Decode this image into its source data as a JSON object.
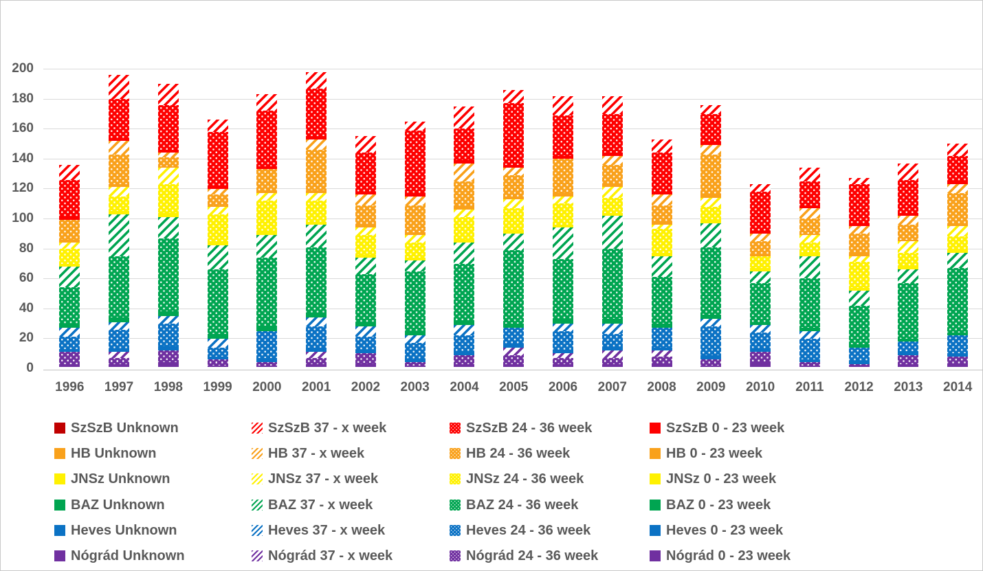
{
  "colors": {
    "szszb_unknown": "#C00000",
    "szszb": "#FE0000",
    "hb": "#F9A11B",
    "jnsz": "#FFF101",
    "baz": "#00A551",
    "heves": "#0B72C4",
    "nograd": "#7030A0",
    "text": "#595959",
    "gridline": "#D9D9D9",
    "axis": "#BFBFBF",
    "background": "#FFFFFF"
  },
  "chart_data": {
    "type": "bar",
    "stacked": true,
    "title": "",
    "xlabel": "",
    "ylabel": "",
    "grid": true,
    "legend_position": "bottom",
    "ylim": [
      0,
      200
    ],
    "ytick_step": 20,
    "yticks": [
      "0",
      "20",
      "40",
      "60",
      "80",
      "100",
      "120",
      "140",
      "160",
      "180",
      "200"
    ],
    "categories": [
      "1996",
      "1997",
      "1998",
      "1999",
      "2000",
      "2001",
      "2002",
      "2003",
      "2004",
      "2005",
      "2006",
      "2007",
      "2008",
      "2009",
      "2010",
      "2011",
      "2012",
      "2013",
      "2014"
    ],
    "series": [
      {
        "name": "Nógrád 0 - 23 week",
        "color_key": "nograd",
        "pattern": "solid",
        "values": [
          2,
          2,
          3,
          1,
          1,
          2,
          2,
          1,
          2,
          2,
          2,
          2,
          2,
          1,
          3,
          1,
          1,
          2,
          2
        ]
      },
      {
        "name": "Nógrád 24 - 36 week",
        "color_key": "nograd",
        "pattern": "dots",
        "values": [
          8,
          4,
          8,
          4,
          2,
          4,
          7,
          2,
          6,
          6,
          4,
          4,
          5,
          4,
          7,
          2,
          1,
          6,
          5
        ]
      },
      {
        "name": "Nógrád 37 - x week",
        "color_key": "nograd",
        "pattern": "diag",
        "values": [
          0,
          4,
          0,
          0,
          0,
          4,
          0,
          0,
          0,
          5,
          3,
          5,
          4,
          0,
          0,
          0,
          0,
          0,
          0
        ]
      },
      {
        "name": "Nógrád Unknown",
        "color_key": "nograd",
        "pattern": "solid",
        "values": [
          0,
          0,
          0,
          0,
          0,
          0,
          0,
          0,
          0,
          0,
          0,
          0,
          0,
          0,
          0,
          0,
          0,
          0,
          0
        ]
      },
      {
        "name": "Heves 0 - 23 week",
        "color_key": "heves",
        "pattern": "solid",
        "values": [
          2,
          2,
          3,
          2,
          3,
          3,
          2,
          2,
          2,
          2,
          2,
          2,
          2,
          3,
          2,
          2,
          2,
          2,
          2
        ]
      },
      {
        "name": "Heves 24 - 36 week",
        "color_key": "heves",
        "pattern": "dots",
        "values": [
          8,
          13,
          15,
          6,
          18,
          14,
          9,
          11,
          11,
          11,
          13,
          9,
          13,
          19,
          11,
          14,
          9,
          7,
          12
        ]
      },
      {
        "name": "Heves 37 - x week",
        "color_key": "heves",
        "pattern": "diag",
        "values": [
          6,
          5,
          5,
          6,
          0,
          6,
          7,
          5,
          7,
          0,
          5,
          7,
          0,
          5,
          5,
          5,
          0,
          0,
          0
        ]
      },
      {
        "name": "Heves Unknown",
        "color_key": "heves",
        "pattern": "solid",
        "values": [
          0,
          0,
          0,
          0,
          0,
          0,
          0,
          0,
          0,
          0,
          0,
          0,
          0,
          0,
          0,
          0,
          0,
          0,
          0
        ]
      },
      {
        "name": "BAZ 0 - 23 week",
        "color_key": "baz",
        "pattern": "solid",
        "values": [
          3,
          3,
          3,
          3,
          3,
          3,
          3,
          3,
          3,
          3,
          3,
          3,
          3,
          3,
          2,
          2,
          2,
          2,
          2
        ]
      },
      {
        "name": "BAZ 24 - 36 week",
        "color_key": "baz",
        "pattern": "dots",
        "values": [
          24,
          41,
          49,
          43,
          46,
          44,
          32,
          40,
          38,
          49,
          40,
          47,
          31,
          45,
          26,
          33,
          26,
          37,
          43
        ]
      },
      {
        "name": "BAZ 37 - x week",
        "color_key": "baz",
        "pattern": "diag",
        "values": [
          14,
          28,
          14,
          16,
          15,
          15,
          11,
          7,
          14,
          11,
          21,
          22,
          14,
          16,
          8,
          15,
          10,
          9,
          10
        ]
      },
      {
        "name": "BAZ Unknown",
        "color_key": "baz",
        "pattern": "solid",
        "values": [
          0,
          0,
          0,
          0,
          0,
          0,
          0,
          0,
          0,
          0,
          0,
          0,
          0,
          0,
          0,
          0,
          0,
          0,
          0
        ]
      },
      {
        "name": "JNSz 0 - 23 week",
        "color_key": "jnsz",
        "pattern": "solid",
        "values": [
          2,
          2,
          3,
          3,
          3,
          2,
          2,
          2,
          2,
          2,
          2,
          2,
          2,
          2,
          2,
          2,
          2,
          2,
          2
        ]
      },
      {
        "name": "JNSz 24 - 36 week",
        "color_key": "jnsz",
        "pattern": "dots",
        "values": [
          10,
          10,
          19,
          18,
          20,
          14,
          13,
          10,
          15,
          15,
          14,
          10,
          16,
          9,
          8,
          7,
          17,
          9,
          9
        ]
      },
      {
        "name": "JNSz 37 - x week",
        "color_key": "jnsz",
        "pattern": "diag",
        "values": [
          4,
          6,
          11,
          5,
          5,
          5,
          5,
          5,
          5,
          6,
          5,
          7,
          3,
          6,
          0,
          5,
          4,
          8,
          7
        ]
      },
      {
        "name": "JNSz Unknown",
        "color_key": "jnsz",
        "pattern": "solid",
        "values": [
          0,
          0,
          0,
          0,
          0,
          0,
          0,
          0,
          0,
          0,
          0,
          0,
          0,
          0,
          0,
          0,
          0,
          0,
          0
        ]
      },
      {
        "name": "HB 0 - 23 week",
        "color_key": "hb",
        "pattern": "solid",
        "values": [
          2,
          2,
          1,
          1,
          2,
          2,
          2,
          2,
          2,
          2,
          2,
          2,
          2,
          2,
          1,
          1,
          2,
          1,
          2
        ]
      },
      {
        "name": "HB 24 - 36 week",
        "color_key": "hb",
        "pattern": "dots",
        "values": [
          13,
          20,
          6,
          7,
          14,
          27,
          13,
          18,
          17,
          14,
          23,
          13,
          11,
          27,
          9,
          10,
          13,
          10,
          20
        ]
      },
      {
        "name": "HB 37 - x week",
        "color_key": "hb",
        "pattern": "diag",
        "values": [
          0,
          9,
          3,
          4,
          0,
          7,
          7,
          6,
          12,
          5,
          0,
          6,
          7,
          6,
          5,
          7,
          5,
          6,
          6
        ]
      },
      {
        "name": "HB Unknown",
        "color_key": "hb",
        "pattern": "solid",
        "values": [
          0,
          0,
          0,
          0,
          0,
          0,
          0,
          0,
          0,
          0,
          0,
          0,
          0,
          0,
          0,
          0,
          0,
          0,
          0
        ]
      },
      {
        "name": "SzSzB 0 - 23 week",
        "color_key": "szszb",
        "pattern": "solid",
        "values": [
          2,
          2,
          2,
          2,
          2,
          2,
          2,
          2,
          2,
          2,
          2,
          2,
          2,
          2,
          2,
          2,
          2,
          2,
          2
        ]
      },
      {
        "name": "SzSzB 24 - 36 week",
        "color_key": "szszb",
        "pattern": "dots",
        "values": [
          25,
          26,
          30,
          36,
          37,
          32,
          26,
          42,
          21,
          41,
          27,
          26,
          26,
          19,
          26,
          16,
          26,
          22,
          17
        ]
      },
      {
        "name": "SzSzB 37 - x week",
        "color_key": "szszb",
        "pattern": "diag",
        "values": [
          10,
          16,
          14,
          8,
          11,
          11,
          11,
          6,
          15,
          9,
          13,
          12,
          9,
          6,
          5,
          9,
          4,
          11,
          8
        ]
      },
      {
        "name": "SzSzB Unknown",
        "color_key": "szszb_unknown",
        "pattern": "solid",
        "values": [
          0,
          0,
          0,
          0,
          0,
          0,
          0,
          0,
          0,
          0,
          0,
          0,
          0,
          0,
          0,
          0,
          0,
          0,
          0
        ]
      }
    ]
  },
  "legend": {
    "rows": [
      {
        "region": "SzSzB",
        "cells": [
          {
            "label": "SzSzB Unknown",
            "pattern": "solid",
            "color_key": "szszb_unknown"
          },
          {
            "label": "SzSzB 37 - x week",
            "pattern": "diag",
            "color_key": "szszb"
          },
          {
            "label": "SzSzB 24 - 36 week",
            "pattern": "dots",
            "color_key": "szszb"
          },
          {
            "label": "SzSzB 0 - 23 week",
            "pattern": "solid",
            "color_key": "szszb"
          }
        ]
      },
      {
        "region": "HB",
        "cells": [
          {
            "label": "HB Unknown",
            "pattern": "solid",
            "color_key": "hb"
          },
          {
            "label": "HB 37 - x week",
            "pattern": "diag",
            "color_key": "hb"
          },
          {
            "label": "HB 24 - 36 week",
            "pattern": "dots",
            "color_key": "hb"
          },
          {
            "label": "HB 0 - 23 week",
            "pattern": "solid",
            "color_key": "hb"
          }
        ]
      },
      {
        "region": "JNSz",
        "cells": [
          {
            "label": "JNSz Unknown",
            "pattern": "solid",
            "color_key": "jnsz"
          },
          {
            "label": "JNSz 37 - x week",
            "pattern": "diag",
            "color_key": "jnsz"
          },
          {
            "label": "JNSz 24 - 36 week",
            "pattern": "dots",
            "color_key": "jnsz"
          },
          {
            "label": "JNSz 0 - 23 week",
            "pattern": "solid",
            "color_key": "jnsz"
          }
        ]
      },
      {
        "region": "BAZ",
        "cells": [
          {
            "label": "BAZ Unknown",
            "pattern": "solid",
            "color_key": "baz"
          },
          {
            "label": "BAZ 37 - x week",
            "pattern": "diag",
            "color_key": "baz"
          },
          {
            "label": "BAZ 24 - 36 week",
            "pattern": "dots",
            "color_key": "baz"
          },
          {
            "label": "BAZ 0 - 23 week",
            "pattern": "solid",
            "color_key": "baz"
          }
        ]
      },
      {
        "region": "Heves",
        "cells": [
          {
            "label": "Heves Unknown",
            "pattern": "solid",
            "color_key": "heves"
          },
          {
            "label": "Heves 37 - x week",
            "pattern": "diag",
            "color_key": "heves"
          },
          {
            "label": "Heves 24 - 36 week",
            "pattern": "dots",
            "color_key": "heves"
          },
          {
            "label": "Heves 0 - 23 week",
            "pattern": "solid",
            "color_key": "heves"
          }
        ]
      },
      {
        "region": "Nógrád",
        "cells": [
          {
            "label": "Nógrád Unknown",
            "pattern": "solid",
            "color_key": "nograd"
          },
          {
            "label": "Nógrád 37 - x week",
            "pattern": "diag",
            "color_key": "nograd"
          },
          {
            "label": "Nógrád 24 - 36 week",
            "pattern": "dots",
            "color_key": "nograd"
          },
          {
            "label": "Nógrád 0 - 23 week",
            "pattern": "solid",
            "color_key": "nograd"
          }
        ]
      }
    ]
  }
}
